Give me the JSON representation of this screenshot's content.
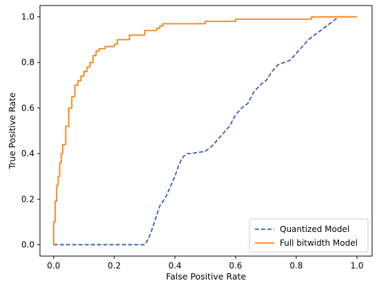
{
  "chart_data": {
    "type": "line",
    "title": "",
    "xlabel": "False Positive Rate",
    "ylabel": "True Positive Rate",
    "xlim": [
      -0.045,
      1.05
    ],
    "ylim": [
      -0.05,
      1.05
    ],
    "xticks": [
      0.0,
      0.2,
      0.4,
      0.6,
      0.8,
      1.0
    ],
    "yticks": [
      0.0,
      0.2,
      0.4,
      0.6,
      0.8,
      1.0
    ],
    "xtick_labels": [
      "0.0",
      "0.2",
      "0.4",
      "0.6",
      "0.8",
      "1.0"
    ],
    "ytick_labels": [
      "0.0",
      "0.2",
      "0.4",
      "0.6",
      "0.8",
      "1.0"
    ],
    "grid": false,
    "legend": {
      "position": "lower-right"
    },
    "series": [
      {
        "name": "Quantized Model",
        "color": "#3a5ba8",
        "style": "dashed",
        "x": [
          0.0,
          0.3,
          0.31,
          0.32,
          0.33,
          0.34,
          0.35,
          0.36,
          0.37,
          0.38,
          0.39,
          0.4,
          0.41,
          0.42,
          0.43,
          0.44,
          0.45,
          0.5,
          0.52,
          0.54,
          0.56,
          0.58,
          0.6,
          0.62,
          0.64,
          0.66,
          0.68,
          0.7,
          0.72,
          0.74,
          0.76,
          0.78,
          0.8,
          0.82,
          0.84,
          0.86,
          0.88,
          0.9,
          0.92,
          0.94,
          0.96,
          1.0
        ],
        "y": [
          0.0,
          0.0,
          0.02,
          0.05,
          0.09,
          0.13,
          0.17,
          0.19,
          0.21,
          0.24,
          0.27,
          0.3,
          0.34,
          0.37,
          0.39,
          0.4,
          0.4,
          0.41,
          0.43,
          0.46,
          0.49,
          0.52,
          0.57,
          0.6,
          0.62,
          0.67,
          0.7,
          0.72,
          0.76,
          0.79,
          0.8,
          0.81,
          0.84,
          0.87,
          0.9,
          0.92,
          0.94,
          0.96,
          0.98,
          1.0,
          1.0,
          1.0
        ]
      },
      {
        "name": "Full bitwidth Model",
        "color": "#ff7f0e",
        "style": "solid",
        "x": [
          0.0,
          0.0,
          0.005,
          0.005,
          0.01,
          0.01,
          0.015,
          0.015,
          0.02,
          0.02,
          0.025,
          0.025,
          0.03,
          0.03,
          0.04,
          0.04,
          0.05,
          0.05,
          0.06,
          0.06,
          0.07,
          0.07,
          0.08,
          0.08,
          0.09,
          0.09,
          0.1,
          0.1,
          0.11,
          0.11,
          0.12,
          0.12,
          0.13,
          0.13,
          0.14,
          0.14,
          0.15,
          0.15,
          0.17,
          0.17,
          0.2,
          0.2,
          0.21,
          0.21,
          0.25,
          0.25,
          0.3,
          0.3,
          0.34,
          0.34,
          0.35,
          0.35,
          0.36,
          0.36,
          0.45,
          0.45,
          0.5,
          0.5,
          0.6,
          0.6,
          0.7,
          0.7,
          0.85,
          0.85,
          0.9,
          0.9,
          1.0
        ],
        "y": [
          0.0,
          0.1,
          0.1,
          0.19,
          0.19,
          0.26,
          0.26,
          0.3,
          0.3,
          0.36,
          0.36,
          0.4,
          0.4,
          0.44,
          0.44,
          0.52,
          0.52,
          0.6,
          0.6,
          0.65,
          0.65,
          0.7,
          0.7,
          0.72,
          0.72,
          0.74,
          0.74,
          0.76,
          0.76,
          0.78,
          0.78,
          0.8,
          0.8,
          0.83,
          0.83,
          0.85,
          0.85,
          0.86,
          0.86,
          0.87,
          0.87,
          0.88,
          0.88,
          0.9,
          0.9,
          0.92,
          0.92,
          0.94,
          0.94,
          0.95,
          0.95,
          0.96,
          0.96,
          0.97,
          0.97,
          0.97,
          0.97,
          0.98,
          0.98,
          0.99,
          0.99,
          0.99,
          0.99,
          1.0,
          1.0,
          1.0,
          1.0
        ]
      }
    ]
  }
}
